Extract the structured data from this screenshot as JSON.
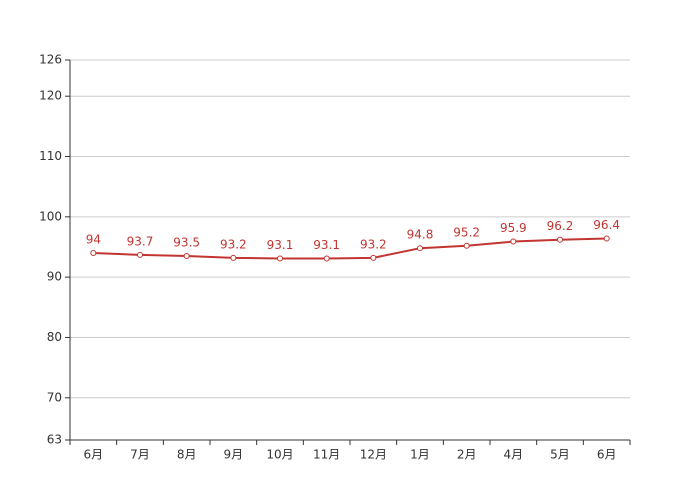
{
  "chart_data": {
    "type": "line",
    "categories": [
      "6月",
      "7月",
      "8月",
      "9月",
      "10月",
      "11月",
      "12月",
      "1月",
      "2月",
      "4月",
      "5月",
      "6月"
    ],
    "series": [
      {
        "color": "#c23531",
        "values": [
          94,
          93.7,
          93.5,
          93.2,
          93.1,
          93.1,
          93.2,
          94.8,
          95.2,
          95.9,
          96.2,
          96.4
        ]
      }
    ],
    "ylim": [
      63,
      126
    ],
    "yticks": [
      63,
      70,
      80,
      90,
      100,
      110,
      120,
      126
    ],
    "grid": true
  }
}
